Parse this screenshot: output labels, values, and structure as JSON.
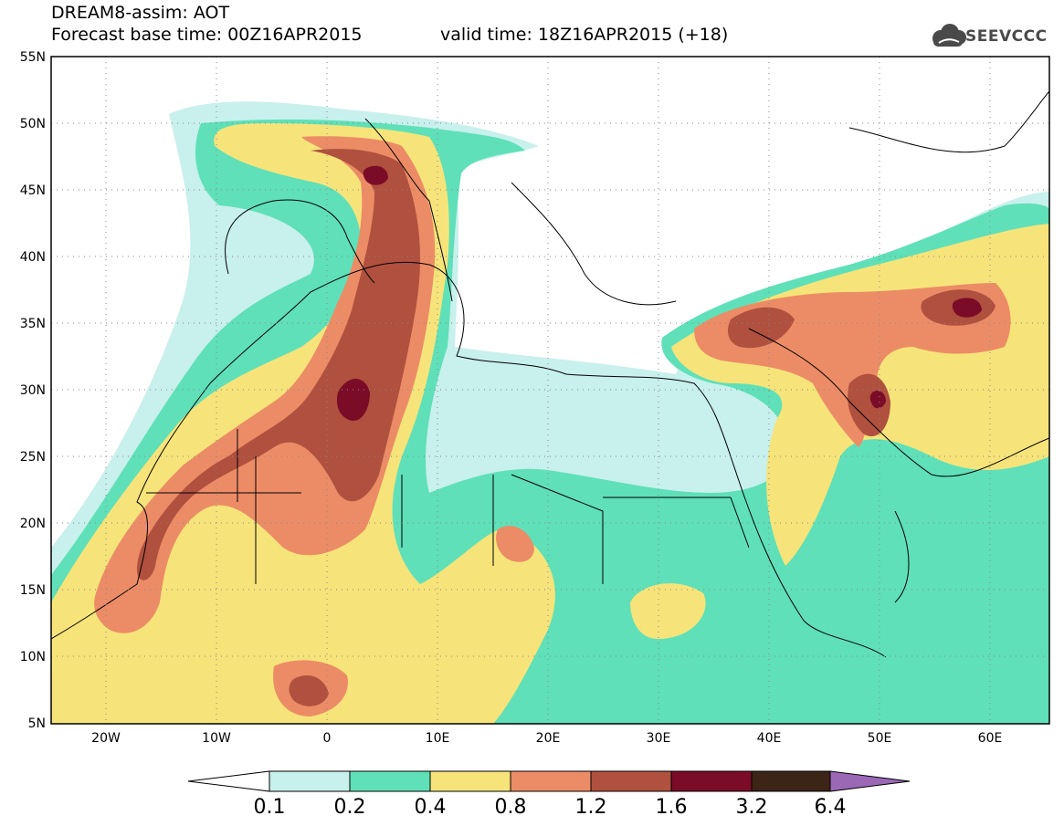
{
  "header": {
    "line1": "DREAM8-assim: AOT",
    "line2": "Forecast base time: 00Z16APR2015",
    "valid": "valid time: 18Z16APR2015 (+18)"
  },
  "logo": {
    "text": "SEEVCCC",
    "icon": "cloud-icon"
  },
  "map": {
    "lon_range": [
      -25,
      65
    ],
    "lat_range": [
      5,
      55
    ],
    "grid": "dotted",
    "lat_labels": [
      "55N",
      "50N",
      "45N",
      "40N",
      "35N",
      "30N",
      "25N",
      "20N",
      "15N",
      "10N",
      "5N"
    ],
    "lon_labels": [
      "20W",
      "10W",
      "0",
      "10E",
      "20E",
      "30E",
      "40E",
      "50E",
      "60E"
    ]
  },
  "colorbar": {
    "labels": [
      "0.1",
      "0.2",
      "0.4",
      "0.8",
      "1.2",
      "1.6",
      "3.2",
      "6.4"
    ],
    "colors": [
      "#c8f0ec",
      "#5fe0b8",
      "#f6e47a",
      "#ec8c66",
      "#b0503e",
      "#7a0c28",
      "#3c2416",
      "#9b68b6"
    ]
  },
  "palette": {
    "low": "#c8f0ec",
    "light": "#5fe0b8",
    "mid": "#f6e47a",
    "high": "#ec8c66",
    "higher": "#b0503e",
    "max": "#7a0c28"
  }
}
